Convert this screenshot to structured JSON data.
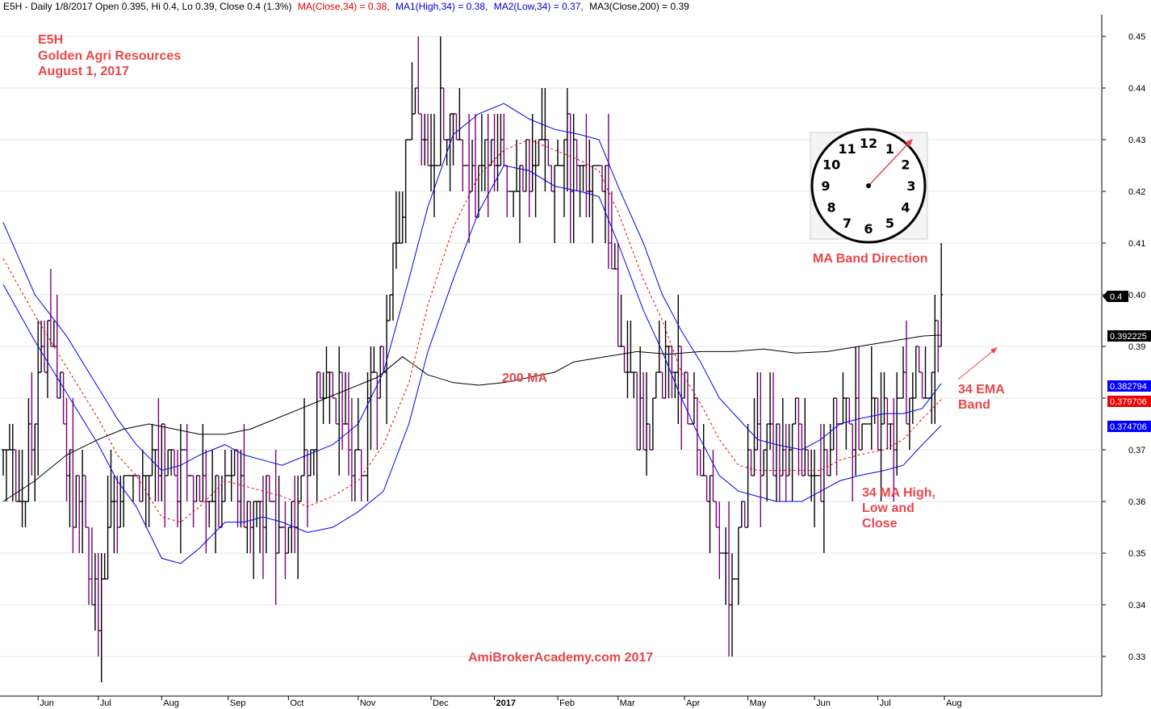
{
  "header": {
    "symbol_info": "E5H - Daily 1/8/2017 Open 0.395, Hi 0.4, Lo 0.39, Close 0.4 (1.3%)",
    "ma_close": "MA(Close,34) = 0.38,",
    "ma_high": "MA1(High,34) = 0.38,",
    "ma_low": "MA2(Low,34) = 0.37,",
    "ma_200": "MA3(Close,200) = 0.39"
  },
  "annotations": {
    "ticker": "E5H",
    "company": "Golden Agri Resources",
    "date": "August 1, 2017",
    "ma200_label": "200 MA",
    "clock_label": "MA Band Direction",
    "ema_label_line1": "34 EMA",
    "ema_label_line2": "Band",
    "ma_label_line1": "34 MA High,",
    "ma_label_line2": "Low and",
    "ma_label_line3": "Close",
    "watermark": "AmiBrokerAcademy.com  2017"
  },
  "clock": {
    "numbers": [
      "12",
      "1",
      "2",
      "3",
      "4",
      "5",
      "6",
      "7",
      "8",
      "9",
      "10",
      "11"
    ]
  },
  "price_tags": [
    {
      "label": "0.4",
      "color": "#000000"
    },
    {
      "label": "0.392225",
      "color": "#000000"
    },
    {
      "label": "0.382794",
      "color": "#0000ff"
    },
    {
      "label": "0.379706",
      "color": "#ee0000"
    },
    {
      "label": "0.374706",
      "color": "#0000ff"
    }
  ],
  "colors": {
    "up_bar": "#000000",
    "down_bar": "#7a007a",
    "ma_close": "#ee0000",
    "ma_band": "#0000ee",
    "ma_200": "#000000",
    "annotation": "#e8474a"
  },
  "chart_data": {
    "type": "bar",
    "subtype": "ohlc",
    "y_axis": {
      "ticks": [
        0.33,
        0.34,
        0.35,
        0.36,
        0.37,
        0.38,
        0.39,
        0.4,
        0.41,
        0.42,
        0.43,
        0.44,
        0.45
      ],
      "tick_labels": [
        "0.33",
        "0.34",
        "0.35",
        "0.36",
        "0.37",
        "",
        "0.39",
        "0.40",
        "0.41",
        "0.42",
        "0.43",
        "0.44",
        "0.45"
      ],
      "range": [
        0.3215,
        0.4545
      ],
      "position": "right"
    },
    "x_axis": {
      "labels": [
        "Jun",
        "Jul",
        "Aug",
        "Sep",
        "Oct",
        "Nov",
        "Dec",
        "2017",
        "Feb",
        "Mar",
        "Apr",
        "May",
        "Jun",
        "Jul",
        "Aug"
      ],
      "label_day": [
        11,
        30,
        50,
        71,
        90,
        112,
        135,
        155,
        175,
        194,
        215,
        235,
        256,
        276,
        297
      ],
      "range": [
        0,
        298
      ]
    },
    "series": [
      {
        "name": "MA(Close,34)",
        "style": "dotted",
        "points": [
          [
            0,
            0.407
          ],
          [
            10,
            0.396
          ],
          [
            20,
            0.386
          ],
          [
            30,
            0.376
          ],
          [
            36,
            0.369
          ],
          [
            42,
            0.365
          ],
          [
            50,
            0.357
          ],
          [
            56,
            0.356
          ],
          [
            62,
            0.359
          ],
          [
            70,
            0.364
          ],
          [
            76,
            0.363
          ],
          [
            82,
            0.362
          ],
          [
            88,
            0.361
          ],
          [
            96,
            0.359
          ],
          [
            104,
            0.361
          ],
          [
            112,
            0.364
          ],
          [
            120,
            0.371
          ],
          [
            128,
            0.383
          ],
          [
            134,
            0.398
          ],
          [
            142,
            0.413
          ],
          [
            150,
            0.423
          ],
          [
            158,
            0.428
          ],
          [
            166,
            0.43
          ],
          [
            174,
            0.428
          ],
          [
            182,
            0.426
          ],
          [
            188,
            0.424
          ],
          [
            194,
            0.416
          ],
          [
            202,
            0.403
          ],
          [
            208,
            0.395
          ],
          [
            214,
            0.385
          ],
          [
            220,
            0.379
          ],
          [
            226,
            0.372
          ],
          [
            232,
            0.367
          ],
          [
            238,
            0.366
          ],
          [
            244,
            0.366
          ],
          [
            252,
            0.366
          ],
          [
            258,
            0.366
          ],
          [
            264,
            0.368
          ],
          [
            270,
            0.369
          ],
          [
            278,
            0.37
          ],
          [
            284,
            0.372
          ],
          [
            290,
            0.376
          ],
          [
            296,
            0.3797
          ]
        ]
      },
      {
        "name": "MA1(High,34)",
        "style": "solid",
        "points": [
          [
            0,
            0.414
          ],
          [
            10,
            0.4
          ],
          [
            20,
            0.392
          ],
          [
            30,
            0.382
          ],
          [
            36,
            0.376
          ],
          [
            42,
            0.371
          ],
          [
            50,
            0.366
          ],
          [
            56,
            0.367
          ],
          [
            62,
            0.369
          ],
          [
            70,
            0.371
          ],
          [
            76,
            0.369
          ],
          [
            82,
            0.368
          ],
          [
            88,
            0.367
          ],
          [
            96,
            0.369
          ],
          [
            104,
            0.371
          ],
          [
            112,
            0.375
          ],
          [
            120,
            0.385
          ],
          [
            128,
            0.403
          ],
          [
            134,
            0.417
          ],
          [
            142,
            0.431
          ],
          [
            150,
            0.435
          ],
          [
            158,
            0.437
          ],
          [
            166,
            0.434
          ],
          [
            174,
            0.432
          ],
          [
            182,
            0.431
          ],
          [
            188,
            0.43
          ],
          [
            194,
            0.421
          ],
          [
            202,
            0.41
          ],
          [
            208,
            0.4
          ],
          [
            214,
            0.393
          ],
          [
            220,
            0.387
          ],
          [
            226,
            0.38
          ],
          [
            232,
            0.376
          ],
          [
            238,
            0.372
          ],
          [
            244,
            0.371
          ],
          [
            252,
            0.37
          ],
          [
            258,
            0.372
          ],
          [
            264,
            0.375
          ],
          [
            270,
            0.376
          ],
          [
            278,
            0.377
          ],
          [
            284,
            0.377
          ],
          [
            290,
            0.378
          ],
          [
            296,
            0.3828
          ]
        ]
      },
      {
        "name": "MA2(Low,34)",
        "style": "solid",
        "points": [
          [
            0,
            0.402
          ],
          [
            10,
            0.391
          ],
          [
            20,
            0.381
          ],
          [
            30,
            0.371
          ],
          [
            36,
            0.364
          ],
          [
            42,
            0.359
          ],
          [
            50,
            0.349
          ],
          [
            56,
            0.348
          ],
          [
            62,
            0.351
          ],
          [
            70,
            0.356
          ],
          [
            76,
            0.356
          ],
          [
            82,
            0.357
          ],
          [
            88,
            0.356
          ],
          [
            96,
            0.354
          ],
          [
            104,
            0.355
          ],
          [
            112,
            0.358
          ],
          [
            120,
            0.362
          ],
          [
            128,
            0.375
          ],
          [
            134,
            0.389
          ],
          [
            142,
            0.403
          ],
          [
            150,
            0.416
          ],
          [
            158,
            0.425
          ],
          [
            166,
            0.424
          ],
          [
            174,
            0.421
          ],
          [
            182,
            0.42
          ],
          [
            188,
            0.419
          ],
          [
            194,
            0.41
          ],
          [
            202,
            0.397
          ],
          [
            208,
            0.389
          ],
          [
            214,
            0.38
          ],
          [
            220,
            0.372
          ],
          [
            226,
            0.365
          ],
          [
            232,
            0.362
          ],
          [
            238,
            0.361
          ],
          [
            244,
            0.36
          ],
          [
            252,
            0.36
          ],
          [
            258,
            0.362
          ],
          [
            264,
            0.364
          ],
          [
            270,
            0.365
          ],
          [
            278,
            0.366
          ],
          [
            284,
            0.367
          ],
          [
            290,
            0.371
          ],
          [
            296,
            0.3747
          ]
        ]
      },
      {
        "name": "MA3(Close,200)",
        "style": "solid",
        "points": [
          [
            0,
            0.36
          ],
          [
            10,
            0.364
          ],
          [
            20,
            0.369
          ],
          [
            30,
            0.372
          ],
          [
            38,
            0.374
          ],
          [
            46,
            0.375
          ],
          [
            54,
            0.374
          ],
          [
            62,
            0.373
          ],
          [
            70,
            0.373
          ],
          [
            78,
            0.374
          ],
          [
            86,
            0.376
          ],
          [
            94,
            0.378
          ],
          [
            102,
            0.38
          ],
          [
            110,
            0.382
          ],
          [
            118,
            0.384
          ],
          [
            126,
            0.388
          ],
          [
            134,
            0.3845
          ],
          [
            142,
            0.383
          ],
          [
            150,
            0.3825
          ],
          [
            158,
            0.383
          ],
          [
            166,
            0.384
          ],
          [
            174,
            0.385
          ],
          [
            180,
            0.387
          ],
          [
            190,
            0.388
          ],
          [
            200,
            0.389
          ],
          [
            210,
            0.3885
          ],
          [
            220,
            0.389
          ],
          [
            230,
            0.389
          ],
          [
            240,
            0.3895
          ],
          [
            250,
            0.3887
          ],
          [
            260,
            0.389
          ],
          [
            270,
            0.39
          ],
          [
            280,
            0.391
          ],
          [
            290,
            0.392
          ],
          [
            296,
            0.3922
          ]
        ]
      }
    ],
    "price_bars": {
      "waypoints": [
        [
          0,
          0.37
        ],
        [
          4,
          0.366
        ],
        [
          7,
          0.361
        ],
        [
          10,
          0.38
        ],
        [
          13,
          0.392
        ],
        [
          16,
          0.389
        ],
        [
          19,
          0.374
        ],
        [
          22,
          0.362
        ],
        [
          25,
          0.358
        ],
        [
          28,
          0.346
        ],
        [
          30,
          0.335
        ],
        [
          33,
          0.357
        ],
        [
          36,
          0.358
        ],
        [
          40,
          0.36
        ],
        [
          44,
          0.362
        ],
        [
          48,
          0.366
        ],
        [
          52,
          0.37
        ],
        [
          55,
          0.367
        ],
        [
          58,
          0.372
        ],
        [
          61,
          0.366
        ],
        [
          64,
          0.36
        ],
        [
          68,
          0.36
        ],
        [
          72,
          0.364
        ],
        [
          76,
          0.358
        ],
        [
          80,
          0.36
        ],
        [
          84,
          0.358
        ],
        [
          88,
          0.357
        ],
        [
          92,
          0.36
        ],
        [
          96,
          0.368
        ],
        [
          100,
          0.385
        ],
        [
          104,
          0.383
        ],
        [
          108,
          0.372
        ],
        [
          112,
          0.364
        ],
        [
          116,
          0.38
        ],
        [
          120,
          0.388
        ],
        [
          124,
          0.408
        ],
        [
          127,
          0.425
        ],
        [
          130,
          0.438
        ],
        [
          133,
          0.432
        ],
        [
          136,
          0.428
        ],
        [
          139,
          0.435
        ],
        [
          142,
          0.43
        ],
        [
          145,
          0.425
        ],
        [
          148,
          0.42
        ],
        [
          151,
          0.422
        ],
        [
          154,
          0.428
        ],
        [
          158,
          0.423
        ],
        [
          162,
          0.422
        ],
        [
          166,
          0.424
        ],
        [
          170,
          0.426
        ],
        [
          174,
          0.427
        ],
        [
          178,
          0.429
        ],
        [
          182,
          0.424
        ],
        [
          186,
          0.423
        ],
        [
          188,
          0.431
        ],
        [
          191,
          0.415
        ],
        [
          194,
          0.395
        ],
        [
          197,
          0.384
        ],
        [
          200,
          0.375
        ],
        [
          203,
          0.373
        ],
        [
          207,
          0.382
        ],
        [
          211,
          0.39
        ],
        [
          214,
          0.384
        ],
        [
          217,
          0.378
        ],
        [
          220,
          0.367
        ],
        [
          223,
          0.36
        ],
        [
          226,
          0.35
        ],
        [
          229,
          0.344
        ],
        [
          232,
          0.353
        ],
        [
          235,
          0.366
        ],
        [
          238,
          0.37
        ],
        [
          241,
          0.375
        ],
        [
          244,
          0.372
        ],
        [
          247,
          0.37
        ],
        [
          250,
          0.377
        ],
        [
          253,
          0.366
        ],
        [
          256,
          0.362
        ],
        [
          260,
          0.37
        ],
        [
          264,
          0.374
        ],
        [
          268,
          0.375
        ],
        [
          272,
          0.376
        ],
        [
          276,
          0.377
        ],
        [
          280,
          0.377
        ],
        [
          284,
          0.381
        ],
        [
          288,
          0.384
        ],
        [
          292,
          0.386
        ],
        [
          296,
          0.4
        ]
      ]
    }
  }
}
